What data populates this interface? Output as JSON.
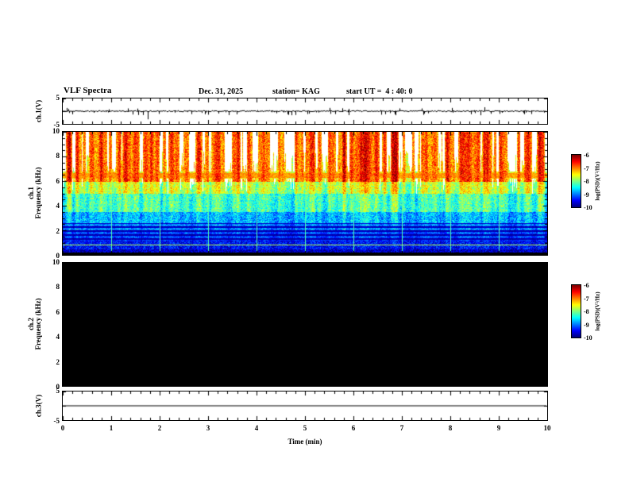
{
  "header": {
    "title": "VLF Spectra",
    "date": "Dec. 31, 2025",
    "station": "station= KAG",
    "start_ut": "start UT =  4 : 40: 0"
  },
  "x_axis": {
    "label": "Time (min)",
    "min": 0,
    "max": 10,
    "major_ticks": [
      0,
      1,
      2,
      3,
      4,
      5,
      6,
      7,
      8,
      9,
      10
    ],
    "minors_per_major": 5
  },
  "colorbar": {
    "label": "log(PSD)(V²/Hz)",
    "ticks": [
      -6,
      -7,
      -8,
      -9,
      -10
    ],
    "top_value": -6,
    "bottom_value": -10,
    "colormap": "jet"
  },
  "chart_data": [
    {
      "id": "ch1-waveform",
      "type": "line",
      "panel_label": "ch.1(V)",
      "ylim": [
        -5,
        5
      ],
      "yticks": [
        5,
        -5
      ],
      "x_range_min": [
        0,
        10
      ],
      "baseline_v": 0,
      "noise_amp_v": 0.25,
      "random_spikes": 80,
      "spikes": [
        {
          "x_min": 1.75,
          "amp_v": -3.2
        }
      ],
      "seed": 11,
      "description": "Near-flat trace at 0 V with dense small impulses and one larger negative spike near 1.75 min"
    },
    {
      "id": "ch1-spectrogram",
      "type": "heatmap",
      "channel": "ch.1",
      "ylabel": "Frequency (kHz)",
      "ylim": [
        0,
        10
      ],
      "yticks": [
        0,
        2,
        4,
        6,
        8,
        10
      ],
      "value_range": [
        -10,
        -6
      ],
      "seed": 29,
      "bands": [
        {
          "f_khz": [
            6,
            10
          ],
          "level": "strong red/orange with vertical white dropout columns"
        },
        {
          "f_khz": [
            3.5,
            6
          ],
          "level": "green/yellow"
        },
        {
          "f_khz": [
            2,
            3.5
          ],
          "level": "cyan/green speckle"
        },
        {
          "f_khz": [
            0.5,
            2
          ],
          "level": "blue with horizontal striations"
        },
        {
          "f_khz": [
            0,
            0.5
          ],
          "level": "dark blue / black floor"
        }
      ],
      "hum_lines_khz": [
        6.5,
        0.85
      ],
      "minute_marker_lines": true
    },
    {
      "id": "ch2-spectrogram",
      "type": "heatmap",
      "channel": "ch.2",
      "ylabel": "Frequency (kHz)",
      "ylim": [
        0,
        10
      ],
      "yticks": [
        0,
        2,
        4,
        6,
        8,
        10
      ],
      "value_range": [
        -10,
        -6
      ],
      "no_signal": true,
      "fill": "#000000",
      "description": "No data: panel entirely black"
    },
    {
      "id": "ch3-waveform",
      "type": "line",
      "panel_label": "ch.3(V)",
      "ylim": [
        -5,
        5
      ],
      "yticks": [
        5,
        -5
      ],
      "baseline_v": 0,
      "noise_amp_v": 0,
      "random_spikes": 0,
      "spikes": [],
      "seed": 5,
      "description": "Flat line at ~0 V"
    }
  ]
}
